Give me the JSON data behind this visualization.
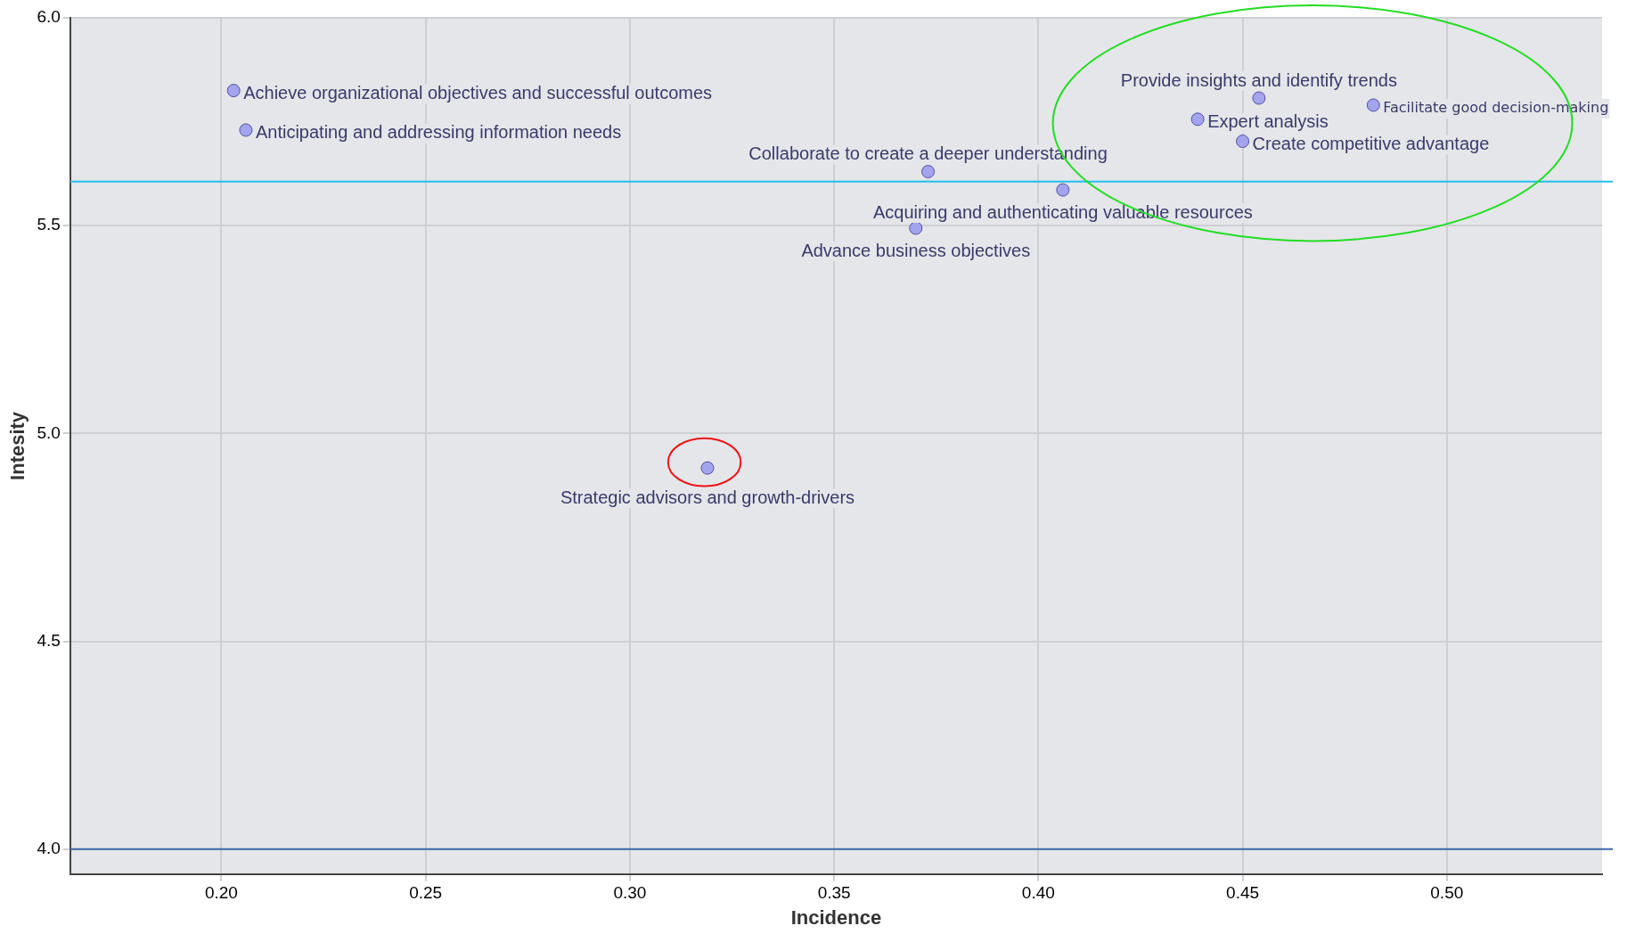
{
  "chart_data": {
    "type": "scatter",
    "xlabel": "Incidence",
    "ylabel": "Intesity",
    "x": [
      0.203,
      0.206,
      0.373,
      0.406,
      0.37,
      0.319,
      0.454,
      0.439,
      0.45,
      0.482
    ],
    "values": [
      5.825,
      5.73,
      5.63,
      5.586,
      5.494,
      4.917,
      5.807,
      5.756,
      5.703,
      5.79
    ],
    "color": "#a4a4ee",
    "xlim": [
      0.163,
      0.538
    ],
    "xticks": [
      {
        "value": 0.2,
        "label": "0.20"
      },
      {
        "value": 0.25,
        "label": "0.25"
      },
      {
        "value": 0.3,
        "label": "0.30"
      },
      {
        "value": 0.35,
        "label": "0.35"
      },
      {
        "value": 0.4,
        "label": "0.40"
      },
      {
        "value": 0.45,
        "label": "0.45"
      },
      {
        "value": 0.5,
        "label": "0.50"
      }
    ],
    "ylim": [
      3.94,
      6.0
    ],
    "yticks": [
      {
        "value": 4,
        "label": "4.0"
      },
      {
        "value": 4.5,
        "label": "4.5"
      },
      {
        "value": 5,
        "label": "5.0"
      },
      {
        "value": 5.5,
        "label": "5.5"
      },
      {
        "value": 6,
        "label": "6.0"
      }
    ],
    "ref_lines": [
      {
        "axis": "y",
        "value": 5.606,
        "color": "#1fc0f0"
      },
      {
        "axis": "y",
        "value": 4.0,
        "color": "#3a6aa8"
      }
    ],
    "annotations": [
      {
        "text": "Achieve organizational objectives and successful outcomes",
        "x": 0.203,
        "y": 5.825
      },
      {
        "text": "Anticipating and addressing information needs",
        "x": 0.206,
        "y": 5.73
      },
      {
        "text": "Collaborate to create a deeper understanding",
        "x": 0.373,
        "y": 5.63
      },
      {
        "text": "Acquiring and authenticating valuable resources",
        "x": 0.406,
        "y": 5.586
      },
      {
        "text": "Advance business objectives",
        "x": 0.37,
        "y": 5.494
      },
      {
        "text": "Strategic advisors and growth-drivers",
        "x": 0.319,
        "y": 4.917
      },
      {
        "text": "Provide insights and identify trends",
        "x": 0.454,
        "y": 5.807
      },
      {
        "text": "Expert analysis",
        "x": 0.439,
        "y": 5.756
      },
      {
        "text": "Create competitive advantage",
        "x": 0.45,
        "y": 5.703
      },
      {
        "text": "Facilitate good decision-making",
        "x": 0.482,
        "y": 5.79
      }
    ],
    "grid": true,
    "legend": false,
    "marker": "circle"
  }
}
